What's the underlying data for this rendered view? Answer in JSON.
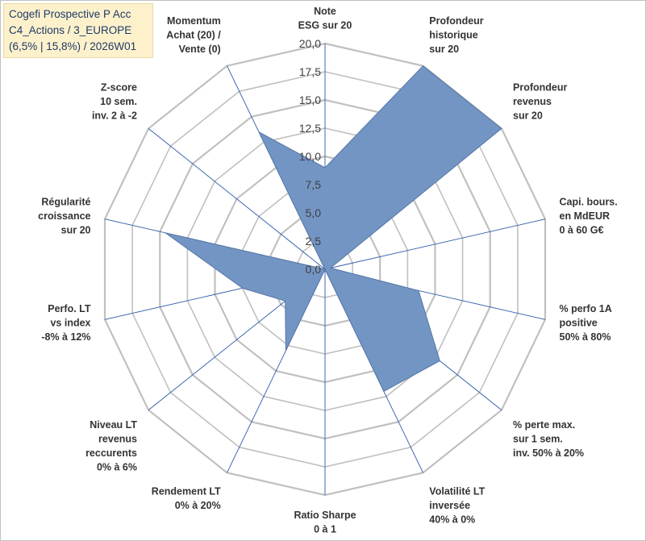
{
  "title_box": {
    "line1": "Cogefi Prospective P Acc",
    "line2": "C4_Actions / 3_EUROPE",
    "line3": "(6,5% | 15,8%) / 2026W01",
    "background": "#fdf1cc"
  },
  "chart_data": {
    "type": "radar",
    "rmax": 20,
    "tick_values": [
      0,
      2.5,
      5,
      7.5,
      10,
      12.5,
      15,
      17.5,
      20
    ],
    "tick_labels": [
      "0,0",
      "2,5",
      "5,0",
      "7,5",
      "10,0",
      "12,5",
      "15,0",
      "17,5",
      "20,0"
    ],
    "axes": [
      {
        "lines": [
          "Note",
          "ESG sur 20"
        ]
      },
      {
        "lines": [
          "Profondeur",
          "historique",
          "sur 20"
        ]
      },
      {
        "lines": [
          "Profondeur",
          "revenus",
          "sur 20"
        ]
      },
      {
        "lines": [
          "Capi. bours.",
          "en MdEUR",
          "0 à 60 G€"
        ]
      },
      {
        "lines": [
          "% perfo 1A",
          "positive",
          "50% à 80%"
        ]
      },
      {
        "lines": [
          "% perte max.",
          "sur 1 sem.",
          "inv. 50% à 20%"
        ]
      },
      {
        "lines": [
          "Volatilité LT",
          "inversée",
          "40% à 0%"
        ]
      },
      {
        "lines": [
          "Ratio Sharpe",
          "0 à 1"
        ]
      },
      {
        "lines": [
          "Rendement LT",
          "0% à 20%"
        ]
      },
      {
        "lines": [
          "Niveau LT",
          "revenus",
          "reccurents",
          "0% à 6%"
        ]
      },
      {
        "lines": [
          "Perfo. LT",
          "vs index",
          "-8% à 12%"
        ]
      },
      {
        "lines": [
          "Régularité",
          "croissance",
          "sur 20"
        ]
      },
      {
        "lines": [
          "Z-score",
          "10 sem.",
          "inv. 2 à -2"
        ]
      },
      {
        "lines": [
          "Momentum",
          "Achat (20) /",
          "Vente (0)"
        ]
      }
    ],
    "series": [
      {
        "name": "Cogefi Prospective P Acc",
        "values": [
          9.0,
          20.0,
          20.0,
          0.5,
          8.5,
          13.0,
          12.0,
          0.0,
          8.0,
          4.5,
          7.5,
          14.5,
          0.0,
          13.5
        ],
        "fill": "#7395c3",
        "stroke": "#5577a8"
      }
    ],
    "grid_color": "#c0c0c0",
    "spoke_color": "#2e5aa8"
  }
}
